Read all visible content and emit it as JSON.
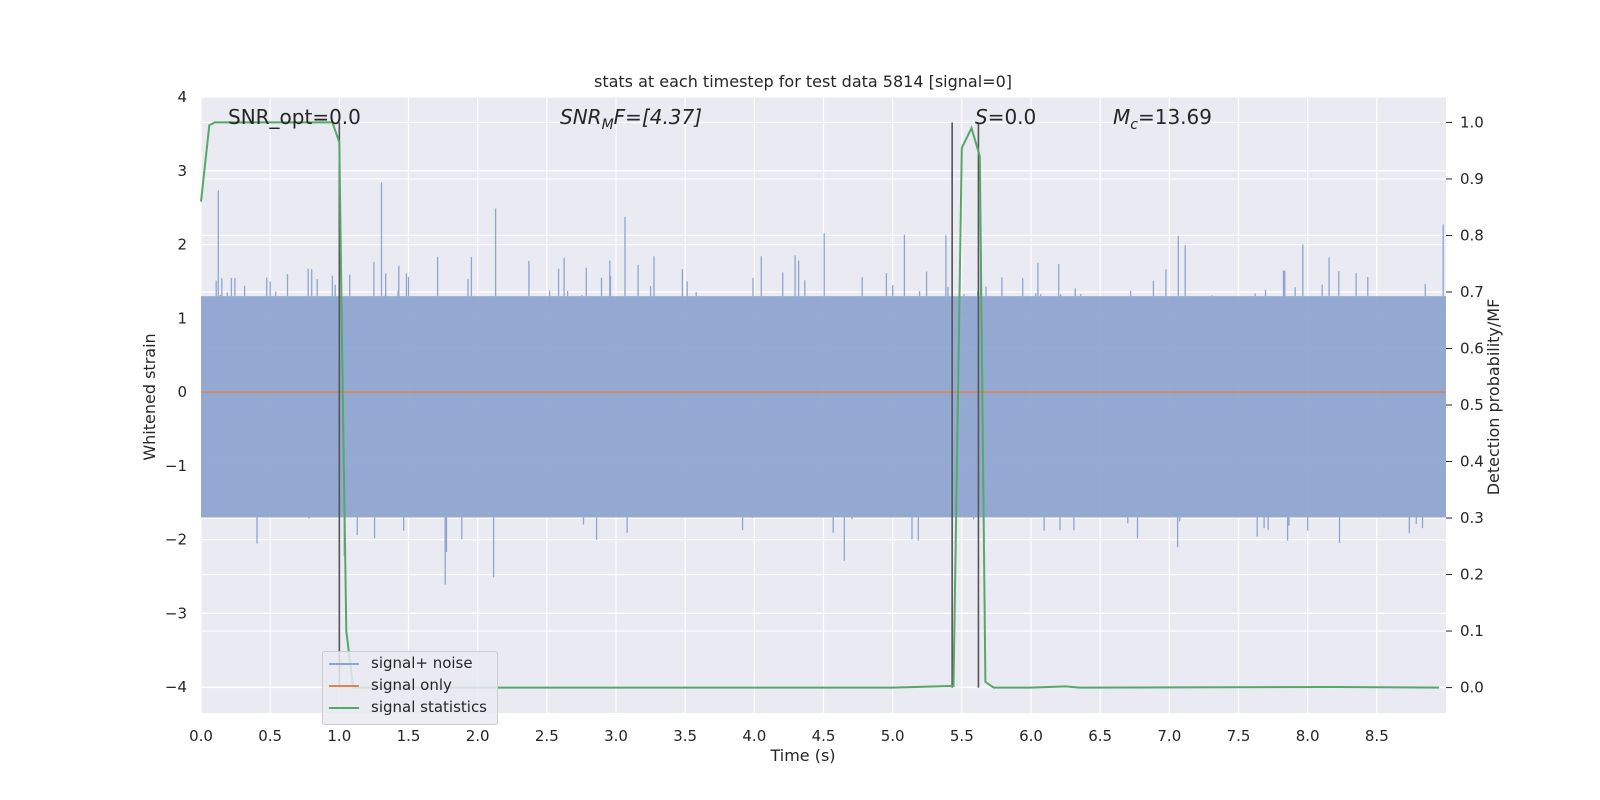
{
  "chart_data": {
    "type": "line",
    "title": "stats at each timestep for test data 5814 [signal=0]",
    "xlabel": "Time (s)",
    "ylabel_left": "Whitened strain",
    "ylabel_right": "Detection probability/MF",
    "xlim": [
      0.0,
      9.0
    ],
    "ylim_left": [
      -4.35,
      4.0
    ],
    "ylim_right": [
      -0.045,
      1.045
    ],
    "x_ticks": [
      "0.0",
      "0.5",
      "1.0",
      "1.5",
      "2.0",
      "2.5",
      "3.0",
      "3.5",
      "4.0",
      "4.5",
      "5.0",
      "5.5",
      "6.0",
      "6.5",
      "7.0",
      "7.5",
      "8.0",
      "8.5"
    ],
    "y_ticks_left": [
      "4",
      "3",
      "2",
      "1",
      "0",
      "−1",
      "−2",
      "−3",
      "−4"
    ],
    "y_ticks_right": [
      "1.0",
      "0.9",
      "0.8",
      "0.7",
      "0.6",
      "0.5",
      "0.4",
      "0.3",
      "0.2",
      "0.1",
      "0.0"
    ],
    "grid": true,
    "legend_position": "lower-left",
    "annotations": {
      "snr_opt": "SNR_opt=0.0",
      "snr_mf_base": "SNR",
      "snr_mf_sub": "M",
      "snr_mf_rest": "F=[4.37]",
      "s_var": "S",
      "s_rest": "=0.0",
      "mc_base": "M",
      "mc_sub": "c",
      "mc_rest": "=13.69"
    },
    "series": [
      {
        "name": "signal+ noise",
        "axis": "left",
        "color": "#8fa5cf",
        "description_of_envelope": {
          "typical_range": [
            -1.7,
            1.3
          ],
          "max": 3.7,
          "min": -3.65
        }
      },
      {
        "name": "signal only",
        "axis": "left",
        "color": "#dd8452",
        "x": [
          0.0,
          9.0
        ],
        "y": [
          0.0,
          0.0
        ]
      },
      {
        "name": "signal statistics",
        "axis": "right",
        "color": "#55a868",
        "x": [
          0.0,
          0.06,
          0.1,
          0.6,
          0.95,
          1.0,
          1.02,
          1.05,
          1.1,
          5.0,
          5.44,
          5.5,
          5.57,
          5.63,
          5.67,
          5.73,
          6.0,
          6.25,
          6.35,
          8.2,
          8.95
        ],
        "y": [
          0.86,
          0.995,
          1.0,
          1.0,
          1.0,
          0.965,
          0.6,
          0.1,
          0.0,
          0.0,
          0.003,
          0.955,
          0.99,
          0.94,
          0.01,
          0.0,
          0.0,
          0.002,
          0.0,
          0.001,
          0.0
        ]
      }
    ],
    "vertical_markers_x": [
      1.0,
      5.43,
      5.62
    ]
  },
  "legend": {
    "items": [
      {
        "label": "signal+ noise"
      },
      {
        "label": "signal only"
      },
      {
        "label": "signal statistics"
      }
    ]
  }
}
